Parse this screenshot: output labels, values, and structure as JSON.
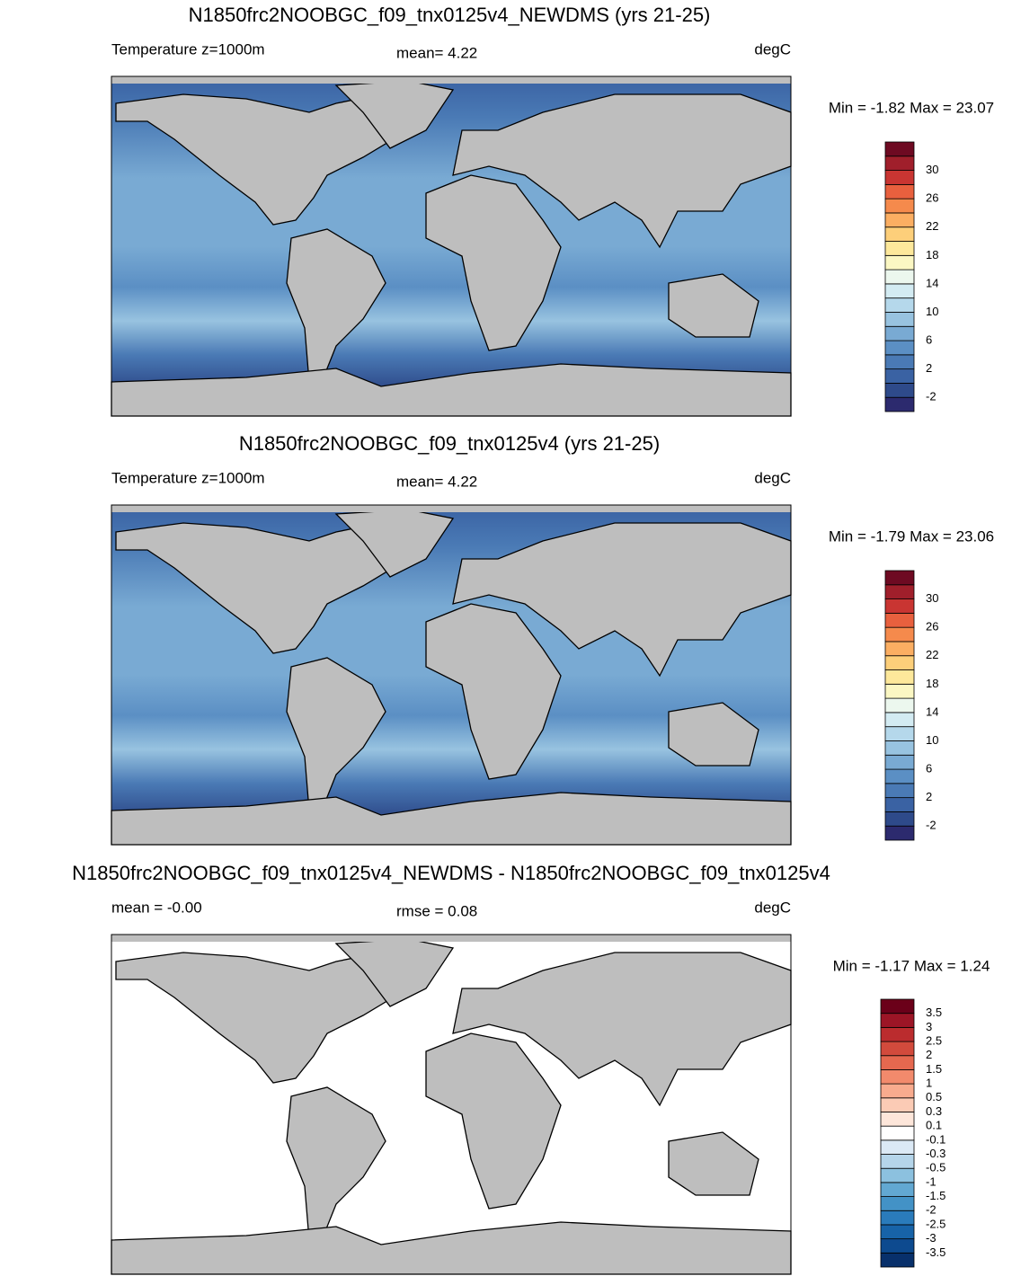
{
  "panels": [
    {
      "title": "N1850frc2NOOBGC_f09_tnx0125v4_NEWDMS (yrs 21-25)",
      "left_label": "Temperature z=1000m",
      "center_label": "mean=   4.22",
      "units": "degC",
      "minmax": "Min =  -1.82 Max =  23.07",
      "colorbar": {
        "labels": [
          "-2",
          "2",
          "6",
          "10",
          "14",
          "18",
          "22",
          "26",
          "30"
        ],
        "colors": [
          "#2c2a6e",
          "#2e4a8a",
          "#3a62a3",
          "#4a7ab5",
          "#5b8fc4",
          "#79aad3",
          "#98c3e0",
          "#b5d8eb",
          "#d3ebf2",
          "#ecf7ee",
          "#fbf7c3",
          "#fde89b",
          "#fdcf7a",
          "#fbae62",
          "#f58a4c",
          "#e8603e",
          "#c93532",
          "#a01f2b",
          "#6e0a22"
        ]
      }
    },
    {
      "title": "N1850frc2NOOBGC_f09_tnx0125v4 (yrs 21-25)",
      "left_label": "Temperature z=1000m",
      "center_label": "mean=   4.22",
      "units": "degC",
      "minmax": "Min =  -1.79 Max =  23.06",
      "colorbar": {
        "labels": [
          "-2",
          "2",
          "6",
          "10",
          "14",
          "18",
          "22",
          "26",
          "30"
        ],
        "colors": [
          "#2c2a6e",
          "#2e4a8a",
          "#3a62a3",
          "#4a7ab5",
          "#5b8fc4",
          "#79aad3",
          "#98c3e0",
          "#b5d8eb",
          "#d3ebf2",
          "#ecf7ee",
          "#fbf7c3",
          "#fde89b",
          "#fdcf7a",
          "#fbae62",
          "#f58a4c",
          "#e8603e",
          "#c93532",
          "#a01f2b",
          "#6e0a22"
        ]
      }
    },
    {
      "title": "N1850frc2NOOBGC_f09_tnx0125v4_NEWDMS - N1850frc2NOOBGC_f09_tnx0125v4",
      "left_label": "mean =  -0.00",
      "center_label": "rmse =   0.08",
      "units": "degC",
      "minmax": "Min =  -1.17 Max =   1.24",
      "colorbar": {
        "labels": [
          "-3.5",
          "-3",
          "-2.5",
          "-2",
          "-1.5",
          "-1",
          "-0.5",
          "-0.3",
          "-0.1",
          "0.1",
          "0.3",
          "0.5",
          "1",
          "1.5",
          "2",
          "2.5",
          "3",
          "3.5"
        ],
        "colors": [
          "#08306b",
          "#0d4a8f",
          "#1763a8",
          "#2a7bbb",
          "#4392c6",
          "#62a8d2",
          "#8cc1df",
          "#b5d5ea",
          "#dbe9f5",
          "#ffffff",
          "#fde6da",
          "#fbcbb5",
          "#f8ab8e",
          "#f28a6c",
          "#e5684f",
          "#d24a3c",
          "#bb2c2e",
          "#9c1526",
          "#6b0019"
        ]
      }
    }
  ]
}
